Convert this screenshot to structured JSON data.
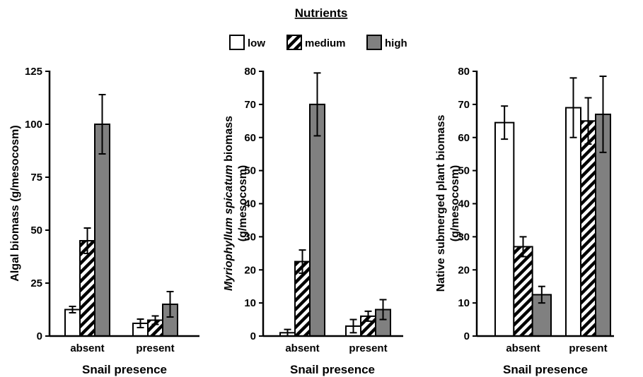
{
  "legend": {
    "title": "Nutrients",
    "items": [
      {
        "label": "low",
        "fill": "#ffffff"
      },
      {
        "label": "medium",
        "fill": "hatch"
      },
      {
        "label": "high",
        "fill": "#808080"
      }
    ]
  },
  "chart_data": [
    {
      "type": "bar",
      "categories": [
        "absent",
        "present"
      ],
      "xlabel": "Snail presence",
      "ylabel": "Algal biomass (g/mesocosm)",
      "ylim": [
        0,
        125
      ],
      "yticks": [
        0,
        25,
        50,
        75,
        100,
        125
      ],
      "series": [
        {
          "name": "low",
          "values": [
            12.5,
            6
          ],
          "errors": [
            1.5,
            2
          ]
        },
        {
          "name": "medium",
          "values": [
            45,
            7.5
          ],
          "errors": [
            6,
            2
          ]
        },
        {
          "name": "high",
          "values": [
            100,
            15
          ],
          "errors": [
            14,
            6
          ]
        }
      ]
    },
    {
      "type": "bar",
      "categories": [
        "absent",
        "present"
      ],
      "xlabel": "Snail presence",
      "ylabel_italic": "Myriophyllum spicatum",
      "ylabel_rest": " biomass",
      "ylabel_line2": "(g/mesocosm)",
      "ylim": [
        0,
        80
      ],
      "yticks": [
        0,
        10,
        20,
        30,
        40,
        50,
        60,
        70,
        80
      ],
      "series": [
        {
          "name": "low",
          "values": [
            1,
            3
          ],
          "errors": [
            1,
            2
          ]
        },
        {
          "name": "medium",
          "values": [
            22.5,
            6
          ],
          "errors": [
            3.5,
            1.5
          ]
        },
        {
          "name": "high",
          "values": [
            70,
            8
          ],
          "errors": [
            9.5,
            3
          ]
        }
      ]
    },
    {
      "type": "bar",
      "categories": [
        "absent",
        "present"
      ],
      "xlabel": "Snail presence",
      "ylabel": "Native submerged plant biomass",
      "ylabel_line2": "(g/mesocosm)",
      "ylim": [
        0,
        80
      ],
      "yticks": [
        0,
        10,
        20,
        30,
        40,
        50,
        60,
        70,
        80
      ],
      "series": [
        {
          "name": "low",
          "values": [
            64.5,
            69
          ],
          "errors": [
            5,
            9
          ]
        },
        {
          "name": "medium",
          "values": [
            27,
            65
          ],
          "errors": [
            3,
            7
          ]
        },
        {
          "name": "high",
          "values": [
            12.5,
            67
          ],
          "errors": [
            2.5,
            11.5
          ]
        }
      ]
    }
  ]
}
